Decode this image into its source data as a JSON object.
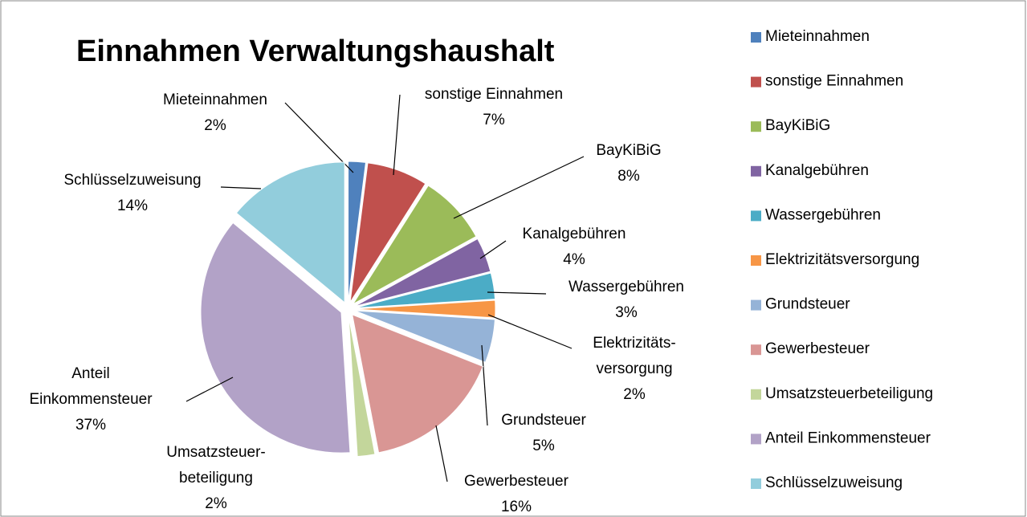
{
  "chart_data": {
    "type": "pie",
    "title": "Einnahmen Verwaltungshaushalt",
    "categories": [
      "Mieteinnahmen",
      "sonstige Einnahmen",
      "BayKiBiG",
      "Kanalgebühren",
      "Wassergebühren",
      "Elektrizitätsversorgung",
      "Grundsteuer",
      "Gewerbesteuer",
      "Umsatzsteuerbeteiligung",
      "Anteil Einkommensteuer",
      "Schlüsselzuweisung"
    ],
    "values": [
      2,
      7,
      8,
      4,
      3,
      2,
      5,
      16,
      2,
      37,
      14
    ],
    "value_labels": [
      "2%",
      "7%",
      "8%",
      "4%",
      "3%",
      "2%",
      "5%",
      "16%",
      "2%",
      "37%",
      "14%"
    ],
    "point_labels": [
      [
        "Mieteinnahmen"
      ],
      [
        "sonstige Einnahmen"
      ],
      [
        "BayKiBiG"
      ],
      [
        "Kanalgebühren"
      ],
      [
        "Wassergebühren"
      ],
      [
        "Elektrizitäts-",
        "versorgung"
      ],
      [
        "Grundsteuer"
      ],
      [
        "Gewerbesteuer"
      ],
      [
        "Umsatzsteuer-",
        "beteiligung"
      ],
      [
        "Anteil",
        "Einkommensteuer"
      ],
      [
        "Schlüsselzuweisung"
      ]
    ],
    "colors": [
      "#4f81bd",
      "#c0504d",
      "#9bbb59",
      "#8064a2",
      "#4bacc6",
      "#f79646",
      "#95b3d7",
      "#d99694",
      "#c3d69b",
      "#b2a2c7",
      "#92cddc"
    ],
    "legend": "right"
  }
}
